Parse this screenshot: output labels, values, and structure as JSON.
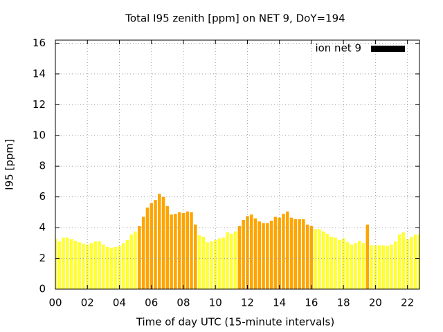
{
  "chart_data": {
    "type": "bar",
    "title": "Total I95 zenith [ppm] on NET 9, DoY=194",
    "xlabel": "Time of day UTC (15-minute intervals)",
    "ylabel": "I95 [ppm]",
    "x": [
      0,
      0.25,
      0.5,
      0.75,
      1,
      1.25,
      1.5,
      1.75,
      2,
      2.25,
      2.5,
      2.75,
      3,
      3.25,
      3.5,
      3.75,
      4,
      4.25,
      4.5,
      4.75,
      5,
      5.25,
      5.5,
      5.75,
      6,
      6.25,
      6.5,
      6.75,
      7,
      7.25,
      7.5,
      7.75,
      8,
      8.25,
      8.5,
      8.75,
      9,
      9.25,
      9.5,
      9.75,
      10,
      10.25,
      10.5,
      10.75,
      11,
      11.25,
      11.5,
      11.75,
      12,
      12.25,
      12.5,
      12.75,
      13,
      13.25,
      13.5,
      13.75,
      14,
      14.25,
      14.5,
      14.75,
      15,
      15.25,
      15.5,
      15.75,
      16,
      16.25,
      16.5,
      16.75,
      17,
      17.25,
      17.5,
      17.75,
      18,
      18.25,
      18.5,
      18.75,
      19,
      19.25,
      19.5,
      19.75,
      20,
      20.25,
      20.5,
      20.75,
      21,
      21.25,
      21.5,
      21.75,
      22,
      22.25,
      22.5,
      22.75
    ],
    "series": [
      {
        "name": "ion net 9",
        "color": "#000000",
        "values": [
          3.3,
          3.1,
          3.35,
          3.35,
          3.25,
          3.15,
          3.05,
          2.95,
          2.9,
          3.0,
          3.1,
          3.1,
          2.9,
          2.75,
          2.7,
          2.75,
          2.8,
          3.0,
          3.2,
          3.55,
          3.75,
          4.1,
          4.7,
          5.3,
          5.6,
          5.8,
          6.2,
          6.0,
          5.4,
          4.85,
          4.9,
          5.0,
          4.95,
          5.05,
          5.0,
          4.2,
          3.5,
          3.4,
          3.05,
          3.1,
          3.2,
          3.3,
          3.35,
          3.7,
          3.6,
          3.75,
          4.1,
          4.5,
          4.75,
          4.85,
          4.6,
          4.4,
          4.3,
          4.3,
          4.45,
          4.7,
          4.65,
          4.9,
          5.05,
          4.65,
          4.55,
          4.55,
          4.55,
          4.2,
          4.1,
          3.9,
          3.9,
          3.75,
          3.6,
          3.4,
          3.35,
          3.2,
          3.3,
          3.05,
          2.9,
          3.0,
          3.15,
          3.0,
          4.2,
          2.85,
          2.85,
          2.85,
          2.85,
          2.8,
          2.9,
          3.1,
          3.55,
          3.7,
          3.25,
          3.4,
          3.55,
          3.55
        ],
        "bar_colors": [
          "#ffff33",
          "#ffff33",
          "#ffff33",
          "#ffff33",
          "#ffff33",
          "#ffff33",
          "#ffff33",
          "#ffff33",
          "#ffff33",
          "#ffff33",
          "#ffff33",
          "#ffff33",
          "#ffff33",
          "#ffff33",
          "#ffff33",
          "#ffff33",
          "#ffff33",
          "#ffff33",
          "#ffff33",
          "#ffff33",
          "#ffff33",
          "#ffa500",
          "#ffa500",
          "#ffa500",
          "#ffa500",
          "#ffa500",
          "#ffa500",
          "#ffa500",
          "#ffa500",
          "#ffa500",
          "#ffa500",
          "#ffa500",
          "#ffa500",
          "#ffa500",
          "#ffa500",
          "#ffa500",
          "#ffff33",
          "#ffff33",
          "#ffff33",
          "#ffff33",
          "#ffff33",
          "#ffff33",
          "#ffff33",
          "#ffff33",
          "#ffff33",
          "#ffff33",
          "#ffa500",
          "#ffa500",
          "#ffa500",
          "#ffa500",
          "#ffa500",
          "#ffa500",
          "#ffa500",
          "#ffa500",
          "#ffa500",
          "#ffa500",
          "#ffa500",
          "#ffa500",
          "#ffa500",
          "#ffa500",
          "#ffa500",
          "#ffa500",
          "#ffa500",
          "#ffa500",
          "#ffa500",
          "#ffff33",
          "#ffff33",
          "#ffff33",
          "#ffff33",
          "#ffff33",
          "#ffff33",
          "#ffff33",
          "#ffff33",
          "#ffff33",
          "#ffff33",
          "#ffff33",
          "#ffff33",
          "#ffff33",
          "#ffa500",
          "#ffff33",
          "#ffff33",
          "#ffff33",
          "#ffff33",
          "#ffff33",
          "#ffff33",
          "#ffff33",
          "#ffff33",
          "#ffff33",
          "#ffff33",
          "#ffff33",
          "#ffff33",
          "#ffff33"
        ]
      }
    ],
    "xlim": [
      0,
      22.75
    ],
    "xticks": [
      {
        "value": 0,
        "label": "00"
      },
      {
        "value": 2,
        "label": "02"
      },
      {
        "value": 4,
        "label": "04"
      },
      {
        "value": 6,
        "label": "06"
      },
      {
        "value": 8,
        "label": "08"
      },
      {
        "value": 10,
        "label": "10"
      },
      {
        "value": 12,
        "label": "12"
      },
      {
        "value": 14,
        "label": "14"
      },
      {
        "value": 16,
        "label": "16"
      },
      {
        "value": 18,
        "label": "18"
      },
      {
        "value": 20,
        "label": "20"
      },
      {
        "value": 22,
        "label": "22"
      }
    ],
    "ylim": [
      0,
      16.2
    ],
    "yticks": [
      0,
      2,
      4,
      6,
      8,
      10,
      12,
      14,
      16
    ],
    "grid": true,
    "legend": "top-right"
  }
}
